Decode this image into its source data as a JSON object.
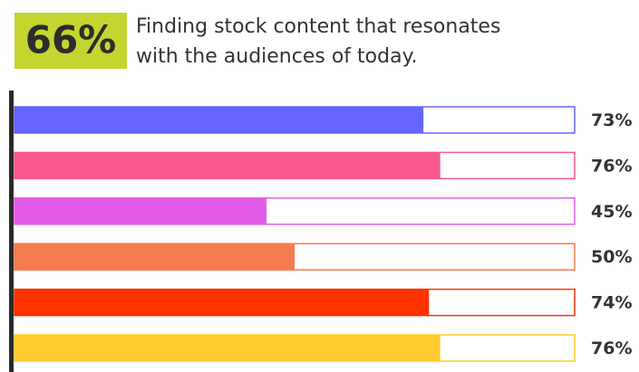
{
  "chart_data": {
    "type": "bar",
    "orientation": "horizontal",
    "headline": "66%",
    "subtitle": [
      "Finding stock content that resonates",
      "with the audiences of today."
    ],
    "headline_color": "#c3d52e",
    "values": [
      73,
      76,
      45,
      50,
      74,
      76
    ],
    "value_labels": [
      "73%",
      "76%",
      "45%",
      "50%",
      "74%",
      "76%"
    ],
    "colors": [
      "#6666ff",
      "#f7598f",
      "#e35ce8",
      "#f57a50",
      "#ff3300",
      "#ffcb2f"
    ],
    "xlim": [
      0,
      100
    ]
  }
}
